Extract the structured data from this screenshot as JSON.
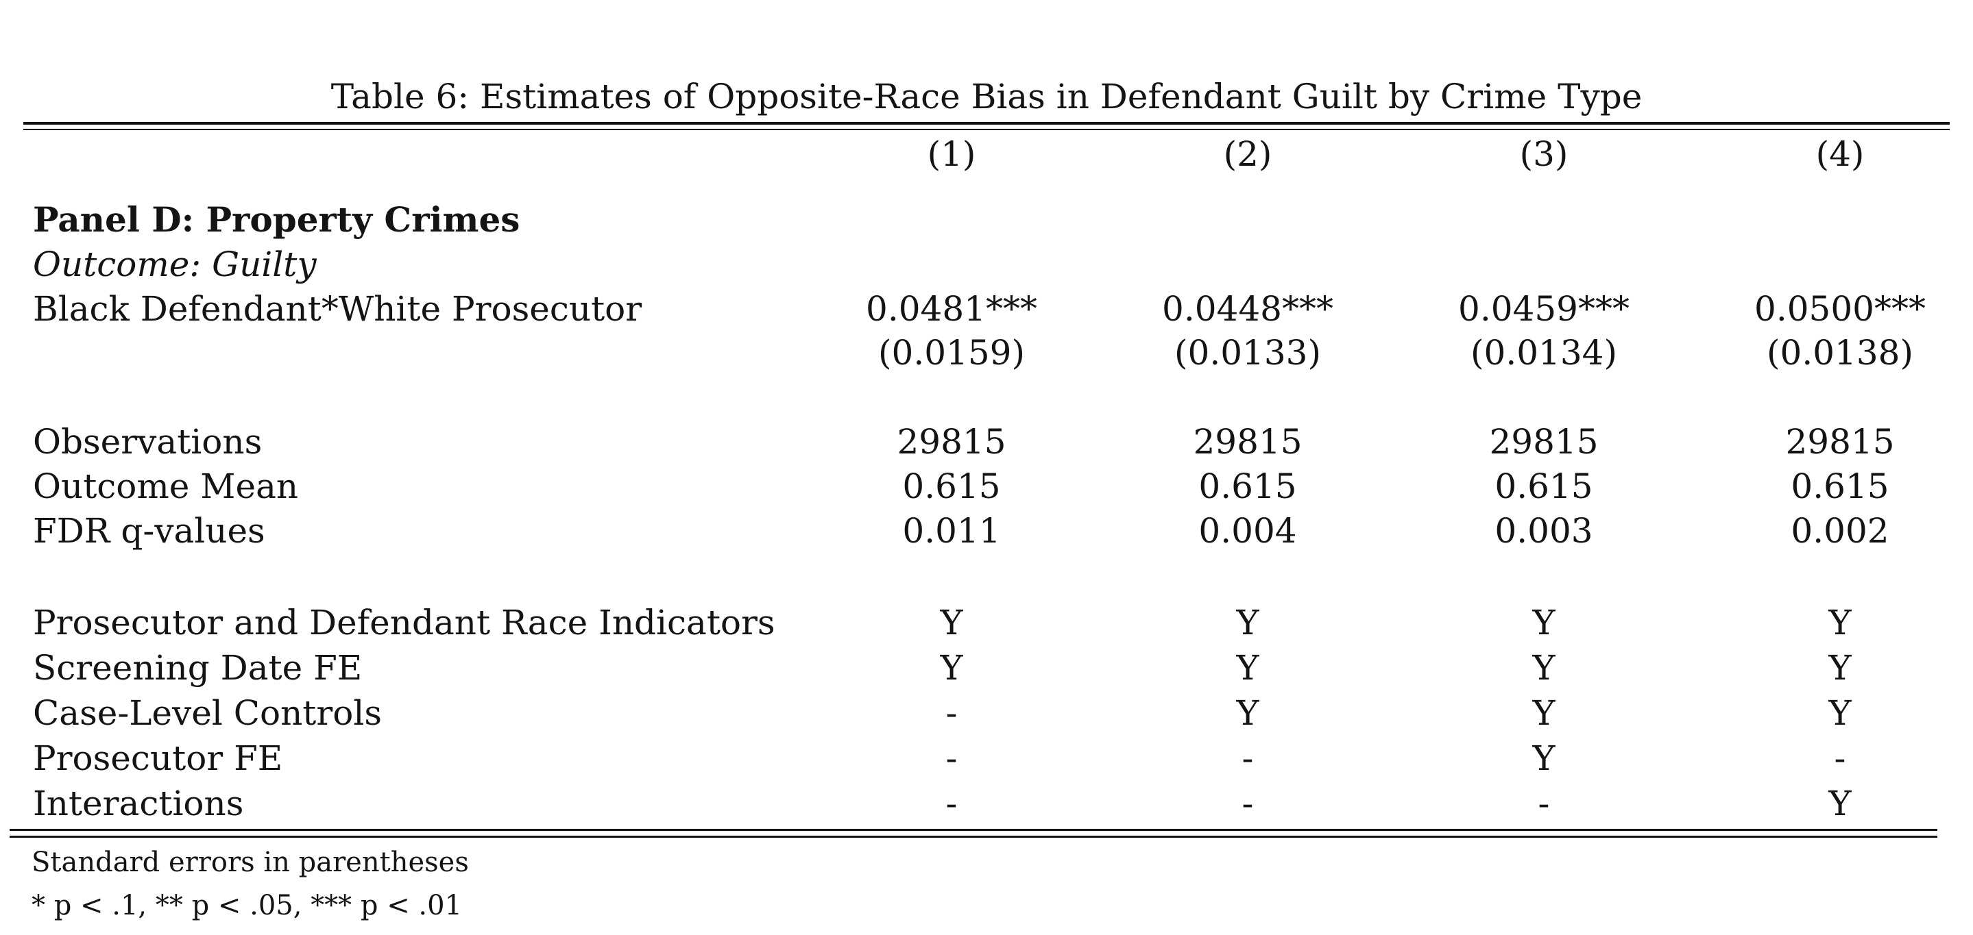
{
  "table": {
    "caption": "Table 6: Estimates of Opposite-Race Bias in Defendant Guilt by Crime Type",
    "columns": [
      "(1)",
      "(2)",
      "(3)",
      "(4)"
    ],
    "panel_title": "Panel D: Property Crimes",
    "outcome_label": "Outcome: Guilty",
    "coef_row": {
      "label": "Black Defendant*White Prosecutor",
      "values": [
        "0.0481***",
        "0.0448***",
        "0.0459***",
        "0.0500***"
      ],
      "std_errors": [
        "(0.0159)",
        "(0.0133)",
        "(0.0134)",
        "(0.0138)"
      ]
    },
    "stats_rows": [
      {
        "label": "Observations",
        "values": [
          "29815",
          "29815",
          "29815",
          "29815"
        ]
      },
      {
        "label": "Outcome Mean",
        "values": [
          "0.615",
          "0.615",
          "0.615",
          "0.615"
        ]
      },
      {
        "label": "FDR q-values",
        "values": [
          "0.011",
          "0.004",
          "0.003",
          "0.002"
        ]
      }
    ],
    "control_rows": [
      {
        "label": "Prosecutor and Defendant Race Indicators",
        "values": [
          "Y",
          "Y",
          "Y",
          "Y"
        ]
      },
      {
        "label": "Screening Date FE",
        "values": [
          "Y",
          "Y",
          "Y",
          "Y"
        ]
      },
      {
        "label": "Case-Level Controls",
        "values": [
          "-",
          "Y",
          "Y",
          "Y"
        ]
      },
      {
        "label": "Prosecutor FE",
        "values": [
          "-",
          "-",
          "Y",
          "-"
        ]
      },
      {
        "label": "Interactions",
        "values": [
          "-",
          "-",
          "-",
          "Y"
        ]
      }
    ],
    "notes": [
      "Standard errors in parentheses",
      "* p < .1, ** p < .05, *** p < .01"
    ]
  }
}
